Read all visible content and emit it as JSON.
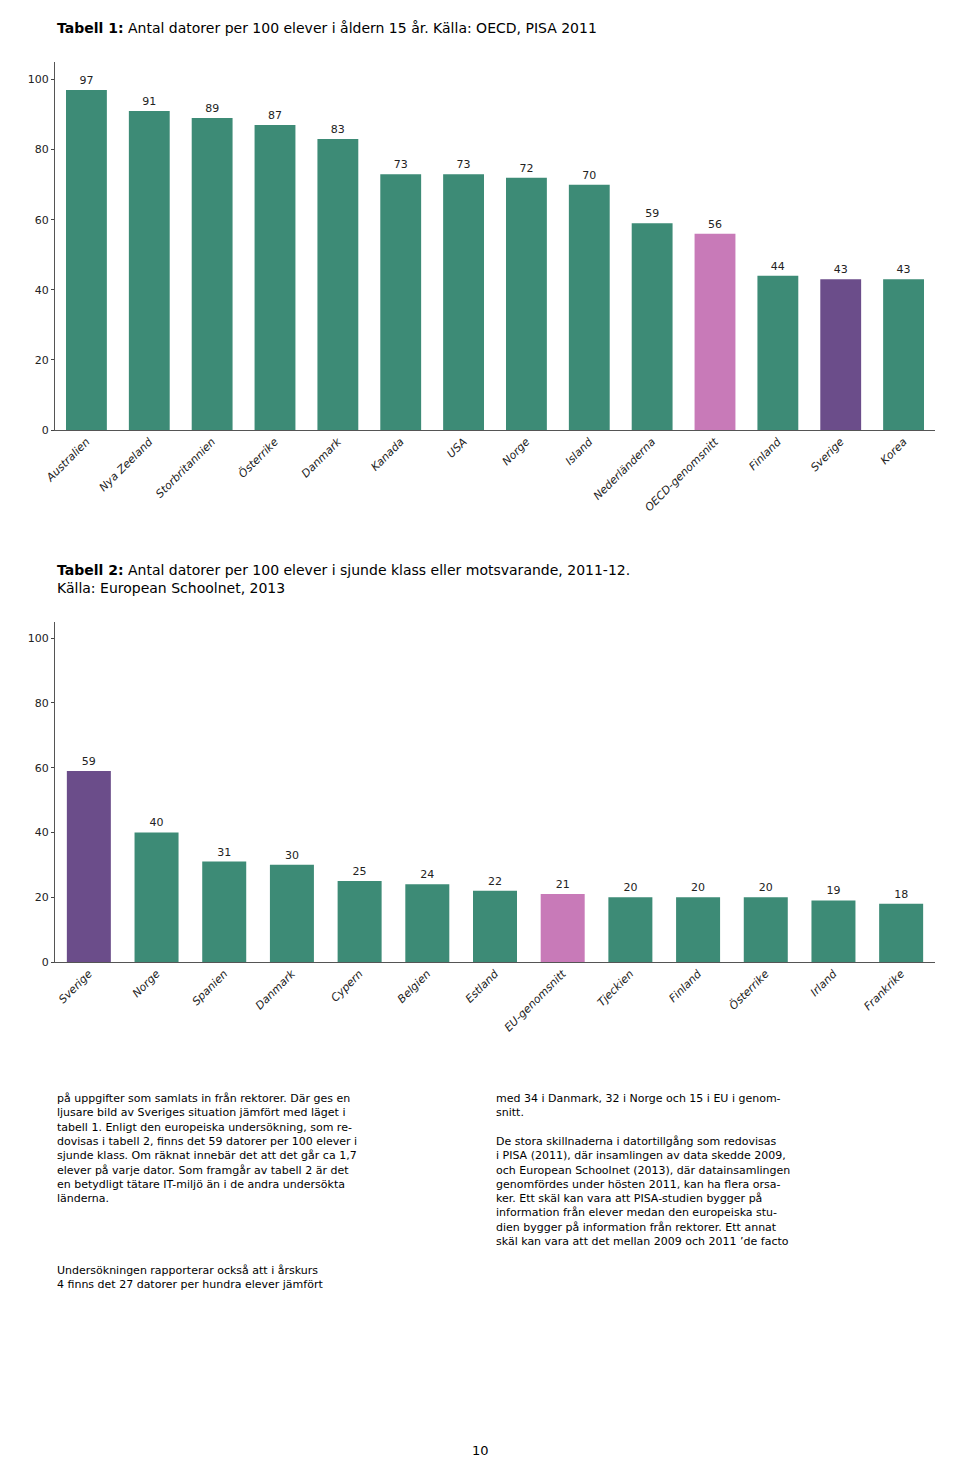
{
  "chart_data": [
    {
      "type": "bar",
      "title": "Tabell 1: Antal datorer per 100 elever i åldern 15 år. Källa: OECD, PISA 2011",
      "categories": [
        "Australien",
        "Nya Zeeland",
        "Storbritannien",
        "Österrike",
        "Danmark",
        "Kanada",
        "USA",
        "Norge",
        "Island",
        "Nederländerna",
        "OECD-genomsnitt",
        "Finland",
        "Sverige",
        "Korea"
      ],
      "values": [
        97,
        91,
        89,
        87,
        83,
        73,
        73,
        72,
        70,
        59,
        56,
        44,
        43,
        43
      ],
      "colors": [
        "#3d8b76",
        "#3d8b76",
        "#3d8b76",
        "#3d8b76",
        "#3d8b76",
        "#3d8b76",
        "#3d8b76",
        "#3d8b76",
        "#3d8b76",
        "#3d8b76",
        "#c87ab8",
        "#3d8b76",
        "#6b4d8a",
        "#3d8b76"
      ],
      "ylim": [
        0,
        105
      ],
      "yticks": [
        0,
        20,
        40,
        60,
        80,
        100
      ],
      "grid": false,
      "data_labels": true
    },
    {
      "type": "bar",
      "title": "Tabell 2: Antal datorer per 100 elever i sjunde klass eller motsvarande, 2011-12.\nKälla: European Schoolnet, 2013",
      "categories": [
        "Sverige",
        "Norge",
        "Spanien",
        "Danmark",
        "Cypern",
        "Belgien",
        "Estland",
        "EU-genomsnitt",
        "Tjeckien",
        "Finland",
        "Österrike",
        "Irland",
        "Frankrike"
      ],
      "values": [
        59,
        40,
        31,
        30,
        25,
        24,
        22,
        21,
        20,
        20,
        20,
        19,
        18
      ],
      "colors": [
        "#6b4d8a",
        "#3d8b76",
        "#3d8b76",
        "#3d8b76",
        "#3d8b76",
        "#3d8b76",
        "#3d8b76",
        "#c87ab8",
        "#3d8b76",
        "#3d8b76",
        "#3d8b76",
        "#3d8b76",
        "#3d8b76"
      ],
      "ylim": [
        0,
        105
      ],
      "yticks": [
        0,
        20,
        40,
        60,
        80,
        100
      ],
      "grid": false,
      "data_labels": true,
      "annotations": [
        "på uppgifter som samlats in från rektorer. Där ges en\nljusare bild av Sveriges situation jämfört med läget i\ntabell 1. Enligt den europeiska undersökning, som re-\ndovisas i tabell 2, finns det 59 datorer per 100 elever i\nsjunde klass. Om räknat innebär det att det går ca 1,7\nelever på varje dator. Som framgår av tabell 2 är det\nen betydligt tätare IT-miljö än i de andra undersökta\nländerna.",
        "Undersökningen rapporterar också att i årskurs\n4 finns det 27 datorer per hundra elever jämfört",
        "med 34 i Danmark, 32 i Norge och 15 i EU i genom-\nsnitt.\n\nDe stora skillnaderna i datortillgång som redovisas\ni PISA (2011), där insamlingen av data skedde 2009,\noch European Schoolnet (2013), där datainsamlingen\ngenomfördes under hösten 2011, kan ha flera orsa-\nker. Ett skäl kan vara att PISA-studien bygger på\ninformation från elever medan den europeiska stu-\ndien bygger på information från rektorer. Ett annat\nskäl kan vara att det mellan 2009 och 2011 ’de facto",
        "10"
      ]
    }
  ]
}
